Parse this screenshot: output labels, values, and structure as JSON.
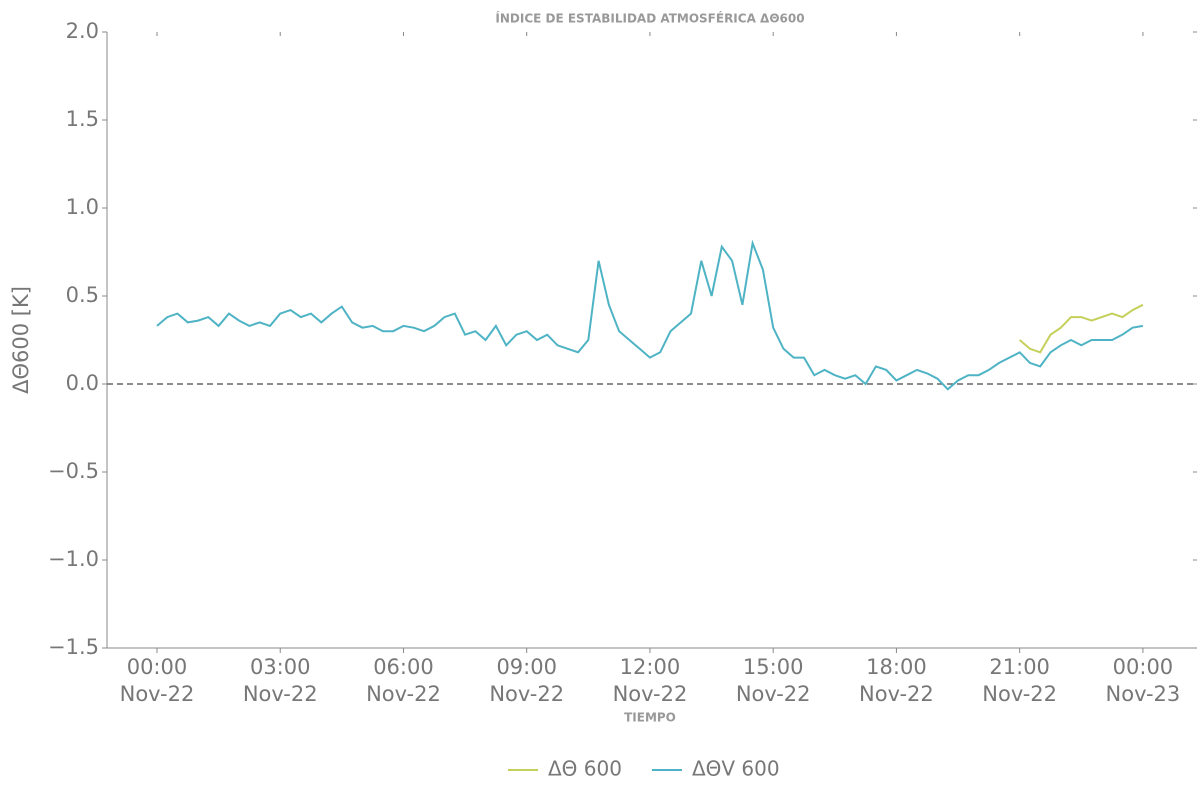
{
  "chart_data": {
    "type": "line",
    "title": "ÍNDICE DE ESTABILIDAD ATMOSFÉRICA ΔΘ600",
    "xlabel": "TIEMPO",
    "ylabel": "ΔΘ600 [K]",
    "x": [
      "Nov-22 00:00",
      "Nov-22 00:15",
      "Nov-22 00:30",
      "Nov-22 00:45",
      "Nov-22 01:00",
      "Nov-22 01:15",
      "Nov-22 01:30",
      "Nov-22 01:45",
      "Nov-22 02:00",
      "Nov-22 02:15",
      "Nov-22 02:30",
      "Nov-22 02:45",
      "Nov-22 03:00",
      "Nov-22 03:15",
      "Nov-22 03:30",
      "Nov-22 03:45",
      "Nov-22 04:00",
      "Nov-22 04:15",
      "Nov-22 04:30",
      "Nov-22 04:45",
      "Nov-22 05:00",
      "Nov-22 05:15",
      "Nov-22 05:30",
      "Nov-22 05:45",
      "Nov-22 06:00",
      "Nov-22 06:15",
      "Nov-22 06:30",
      "Nov-22 06:45",
      "Nov-22 07:00",
      "Nov-22 07:15",
      "Nov-22 07:30",
      "Nov-22 07:45",
      "Nov-22 08:00",
      "Nov-22 08:15",
      "Nov-22 08:30",
      "Nov-22 08:45",
      "Nov-22 09:00",
      "Nov-22 09:15",
      "Nov-22 09:30",
      "Nov-22 09:45",
      "Nov-22 10:00",
      "Nov-22 10:15",
      "Nov-22 10:30",
      "Nov-22 10:45",
      "Nov-22 11:00",
      "Nov-22 11:15",
      "Nov-22 11:30",
      "Nov-22 11:45",
      "Nov-22 12:00",
      "Nov-22 12:15",
      "Nov-22 12:30",
      "Nov-22 12:45",
      "Nov-22 13:00",
      "Nov-22 13:15",
      "Nov-22 13:30",
      "Nov-22 13:45",
      "Nov-22 14:00",
      "Nov-22 14:15",
      "Nov-22 14:30",
      "Nov-22 14:45",
      "Nov-22 15:00",
      "Nov-22 15:15",
      "Nov-22 15:30",
      "Nov-22 15:45",
      "Nov-22 16:00",
      "Nov-22 16:15",
      "Nov-22 16:30",
      "Nov-22 16:45",
      "Nov-22 17:00",
      "Nov-22 17:15",
      "Nov-22 17:30",
      "Nov-22 17:45",
      "Nov-22 18:00",
      "Nov-22 18:15",
      "Nov-22 18:30",
      "Nov-22 18:45",
      "Nov-22 19:00",
      "Nov-22 19:15",
      "Nov-22 19:30",
      "Nov-22 19:45",
      "Nov-22 20:00",
      "Nov-22 20:15",
      "Nov-22 20:30",
      "Nov-22 20:45",
      "Nov-22 21:00",
      "Nov-22 21:15",
      "Nov-22 21:30",
      "Nov-22 21:45",
      "Nov-22 22:00",
      "Nov-22 22:15",
      "Nov-22 22:30",
      "Nov-22 22:45",
      "Nov-22 23:00",
      "Nov-22 23:15",
      "Nov-22 23:30",
      "Nov-22 23:45",
      "Nov-23 00:00"
    ],
    "series": [
      {
        "name": "ΔΘ 600",
        "color": "#c5d05a",
        "values": [
          null,
          null,
          null,
          null,
          null,
          null,
          null,
          null,
          null,
          null,
          null,
          null,
          null,
          null,
          null,
          null,
          null,
          null,
          null,
          null,
          null,
          null,
          null,
          null,
          null,
          null,
          null,
          null,
          null,
          null,
          null,
          null,
          null,
          null,
          null,
          null,
          null,
          null,
          null,
          null,
          null,
          null,
          null,
          null,
          null,
          null,
          null,
          null,
          null,
          null,
          null,
          null,
          null,
          null,
          null,
          null,
          null,
          null,
          null,
          null,
          null,
          null,
          null,
          null,
          null,
          null,
          null,
          null,
          null,
          null,
          null,
          null,
          null,
          null,
          null,
          null,
          null,
          null,
          null,
          null,
          null,
          null,
          null,
          null,
          0.25,
          0.2,
          0.18,
          0.28,
          0.32,
          0.38,
          0.38,
          0.36,
          0.38,
          0.4,
          0.38,
          0.42,
          0.45
        ]
      },
      {
        "name": "ΔΘV 600",
        "color": "#4eb3c4",
        "values": [
          0.33,
          0.38,
          0.4,
          0.35,
          0.36,
          0.38,
          0.33,
          0.4,
          0.36,
          0.33,
          0.35,
          0.33,
          0.4,
          0.42,
          0.38,
          0.4,
          0.35,
          0.4,
          0.44,
          0.35,
          0.32,
          0.33,
          0.3,
          0.3,
          0.33,
          0.32,
          0.3,
          0.33,
          0.38,
          0.4,
          0.28,
          0.3,
          0.25,
          0.33,
          0.22,
          0.28,
          0.3,
          0.25,
          0.28,
          0.22,
          0.2,
          0.18,
          0.25,
          0.7,
          0.45,
          0.3,
          0.25,
          0.2,
          0.15,
          0.18,
          0.3,
          0.35,
          0.4,
          0.7,
          0.5,
          0.78,
          0.7,
          0.45,
          0.8,
          0.65,
          0.32,
          0.2,
          0.15,
          0.15,
          0.05,
          0.08,
          0.05,
          0.03,
          0.05,
          0.0,
          0.1,
          0.08,
          0.02,
          0.05,
          0.08,
          0.06,
          0.03,
          -0.03,
          0.02,
          0.05,
          0.05,
          0.08,
          0.12,
          0.15,
          0.18,
          0.12,
          0.1,
          0.18,
          0.22,
          0.25,
          0.22,
          0.25,
          0.25,
          0.25,
          0.28,
          0.32,
          0.33
        ]
      }
    ],
    "xlim": [
      "Nov-21 22:47",
      "Nov-23 01:19"
    ],
    "xticks": [
      {
        "value": "Nov-22 00:00",
        "label": [
          "00:00",
          "Nov-22"
        ]
      },
      {
        "value": "Nov-22 03:00",
        "label": [
          "03:00",
          "Nov-22"
        ]
      },
      {
        "value": "Nov-22 06:00",
        "label": [
          "06:00",
          "Nov-22"
        ]
      },
      {
        "value": "Nov-22 09:00",
        "label": [
          "09:00",
          "Nov-22"
        ]
      },
      {
        "value": "Nov-22 12:00",
        "label": [
          "12:00",
          "Nov-22"
        ]
      },
      {
        "value": "Nov-22 15:00",
        "label": [
          "15:00",
          "Nov-22"
        ]
      },
      {
        "value": "Nov-22 18:00",
        "label": [
          "18:00",
          "Nov-22"
        ]
      },
      {
        "value": "Nov-22 21:00",
        "label": [
          "21:00",
          "Nov-22"
        ]
      },
      {
        "value": "Nov-23 00:00",
        "label": [
          "00:00",
          "Nov-23"
        ]
      }
    ],
    "ylim": [
      -1.5,
      2.0
    ],
    "yticks": [
      {
        "value": -1.5,
        "label": "−1.5"
      },
      {
        "value": -1.0,
        "label": "−1.0"
      },
      {
        "value": -0.5,
        "label": "−0.5"
      },
      {
        "value": 0,
        "label": "0.0"
      },
      0.5,
      {
        "value": 1.0,
        "label": "1.0"
      },
      1.5,
      {
        "value": 2.0,
        "label": "2.0"
      }
    ],
    "hline": 0,
    "legend": "bottom"
  }
}
